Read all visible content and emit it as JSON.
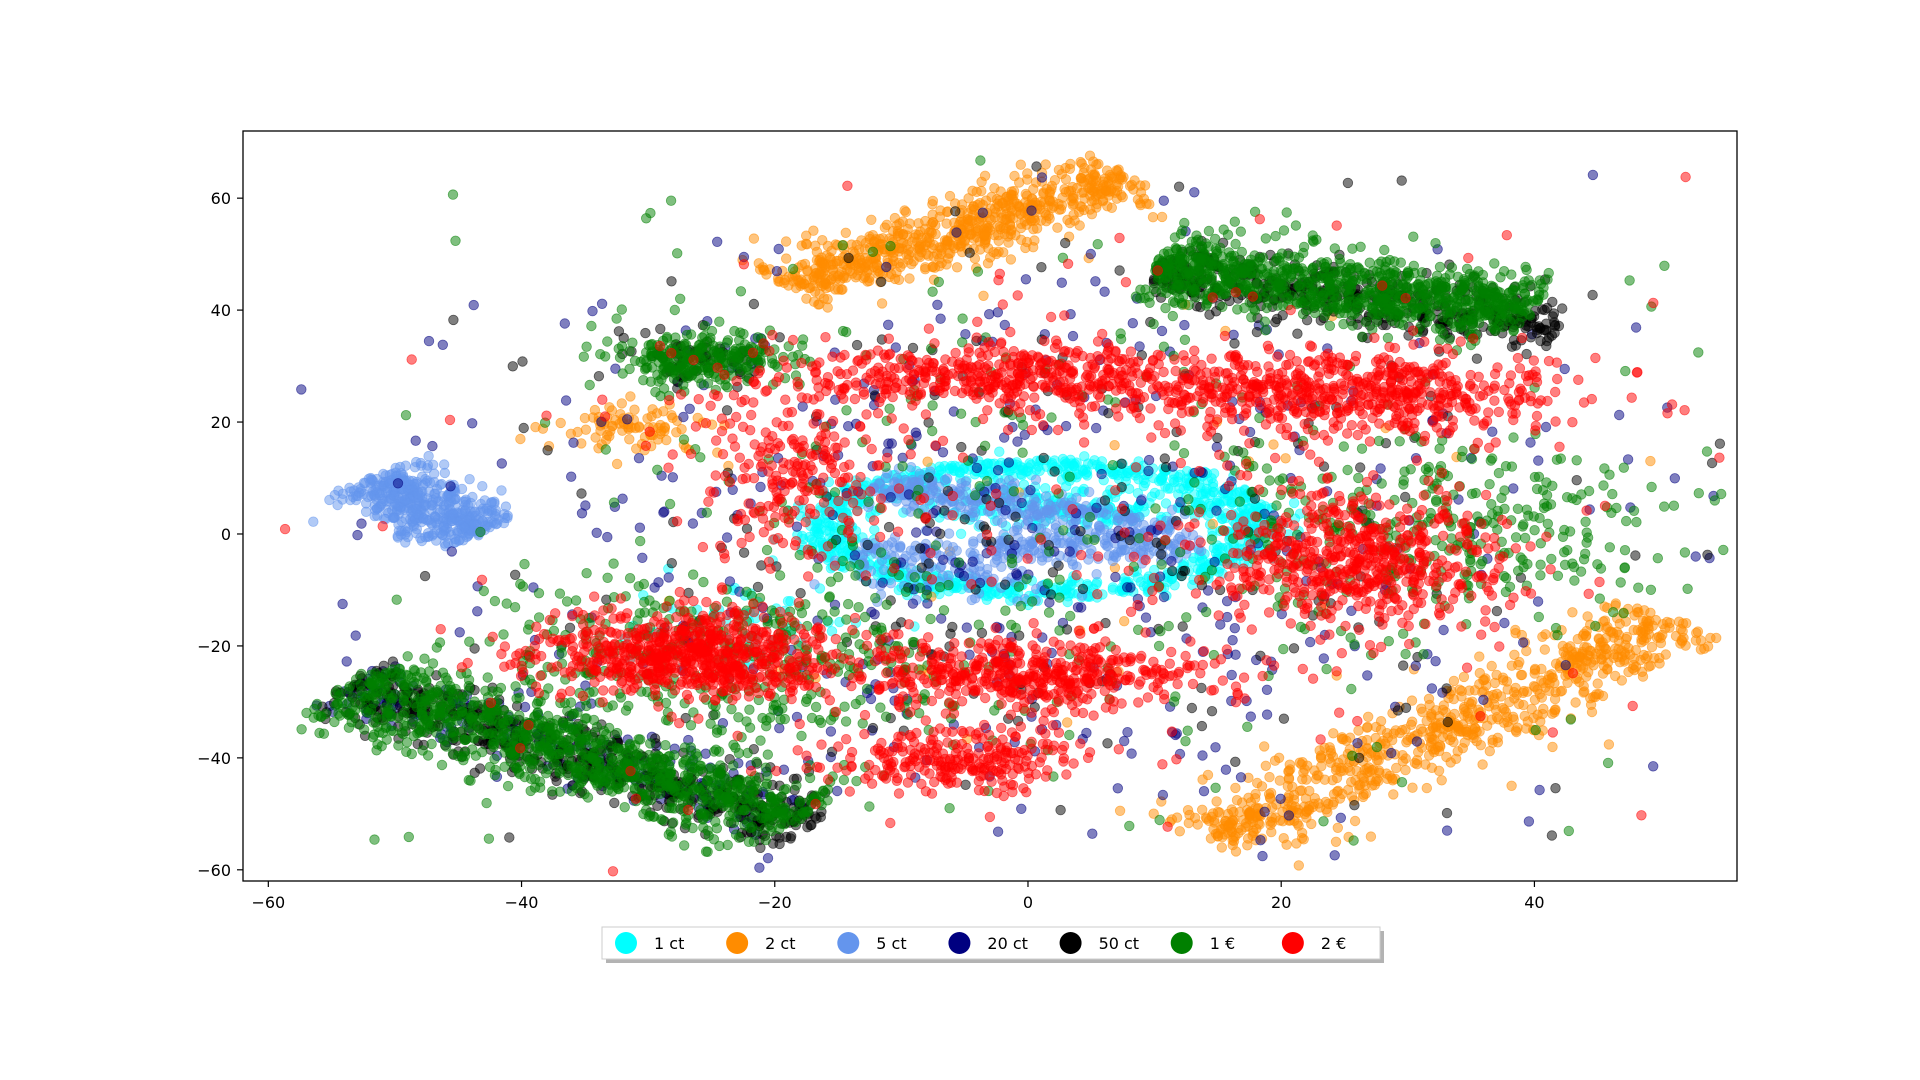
{
  "chart_data": {
    "type": "scatter",
    "title": "",
    "xlabel": "",
    "ylabel": "",
    "xlim": [
      -62,
      56
    ],
    "ylim": [
      -62,
      72
    ],
    "xticks": [
      -60,
      -40,
      -20,
      0,
      20,
      40
    ],
    "yticks": [
      -60,
      -40,
      -20,
      0,
      20,
      40,
      60
    ],
    "grid": false,
    "legend_placement": "bottom-center",
    "series": [
      {
        "name": "1 ct",
        "color": "#00ffff",
        "clusters": [
          {
            "shape": "ring",
            "cx": 1,
            "cy": 1,
            "rx": 17,
            "ry": 18,
            "n": 900
          },
          {
            "shape": "blob",
            "cx": 4,
            "cy": 5,
            "sx": 6,
            "sy": 2,
            "n": 200
          },
          {
            "shape": "blob",
            "cx": -22,
            "cy": -16,
            "sx": 5,
            "sy": 4,
            "n": 60
          }
        ]
      },
      {
        "name": "2 ct",
        "color": "#ff8c00",
        "clusters": [
          {
            "shape": "band",
            "x0": -19,
            "y0": 44,
            "x1": 8,
            "y1": 64,
            "w": 2.6,
            "n": 700
          },
          {
            "shape": "band",
            "x0": 14,
            "y0": -55,
            "x1": 51,
            "y1": -15,
            "w": 2.8,
            "n": 800
          },
          {
            "shape": "blob",
            "cx": -31,
            "cy": 19,
            "sx": 3,
            "sy": 2,
            "n": 90
          },
          {
            "shape": "blob",
            "cx": 0,
            "cy": 0,
            "sx": 22,
            "sy": 30,
            "n": 40
          }
        ]
      },
      {
        "name": "5 ct",
        "color": "#6495ed",
        "clusters": [
          {
            "shape": "band",
            "x0": -52,
            "y0": 10,
            "x1": -43,
            "y1": 0,
            "w": 2.2,
            "n": 450
          },
          {
            "shape": "band",
            "x0": -12,
            "y0": 9,
            "x1": 11,
            "y1": 0,
            "w": 2,
            "n": 320
          },
          {
            "shape": "band",
            "x0": -14,
            "y0": -3,
            "x1": 14,
            "y1": -2,
            "w": 1.5,
            "n": 220
          },
          {
            "shape": "blob",
            "cx": -6,
            "cy": -8,
            "sx": 5,
            "sy": 2,
            "n": 80
          }
        ]
      },
      {
        "name": "20 ct",
        "color": "#000080",
        "clusters": [
          {
            "shape": "blob",
            "cx": 0,
            "cy": 0,
            "sx": 22,
            "sy": 27,
            "n": 500
          },
          {
            "shape": "band",
            "x0": -54,
            "y0": -26,
            "x1": -18,
            "y1": -51,
            "w": 2.6,
            "n": 200
          }
        ]
      },
      {
        "name": "50 ct",
        "color": "#000000",
        "clusters": [
          {
            "shape": "band",
            "x0": -54,
            "y0": -27,
            "x1": -17,
            "y1": -52,
            "w": 2.6,
            "n": 550
          },
          {
            "shape": "band",
            "x0": 10,
            "y0": 47,
            "x1": 42,
            "y1": 37,
            "w": 2.6,
            "n": 450
          },
          {
            "shape": "blob",
            "cx": 0,
            "cy": 0,
            "sx": 22,
            "sy": 27,
            "n": 250
          },
          {
            "shape": "blob",
            "cx": -26,
            "cy": 31,
            "sx": 3,
            "sy": 2,
            "n": 60
          }
        ]
      },
      {
        "name": "1 €",
        "color": "#008000",
        "clusters": [
          {
            "shape": "band",
            "x0": -54,
            "y0": -27,
            "x1": -18,
            "y1": -51,
            "w": 3.4,
            "n": 1000
          },
          {
            "shape": "band",
            "x0": 10,
            "y0": 48,
            "x1": 40,
            "y1": 40,
            "w": 3.2,
            "n": 900
          },
          {
            "shape": "blob",
            "cx": -26,
            "cy": 31,
            "sx": 3.5,
            "sy": 2.5,
            "n": 250
          },
          {
            "shape": "blob",
            "cx": 33,
            "cy": 1,
            "sx": 9,
            "sy": 8,
            "n": 300
          },
          {
            "shape": "blob",
            "cx": -23,
            "cy": -23,
            "sx": 9,
            "sy": 8,
            "n": 350
          },
          {
            "shape": "blob",
            "cx": 0,
            "cy": 0,
            "sx": 22,
            "sy": 27,
            "n": 350
          }
        ]
      },
      {
        "name": "2 €",
        "color": "#ff0000",
        "clusters": [
          {
            "shape": "blob",
            "cx": -27,
            "cy": -22,
            "sx": 6,
            "sy": 4,
            "n": 700
          },
          {
            "shape": "blob",
            "cx": 25,
            "cy": 25,
            "sx": 9,
            "sy": 4,
            "n": 600
          },
          {
            "shape": "blob",
            "cx": 26,
            "cy": -5,
            "sx": 6,
            "sy": 6,
            "n": 550
          },
          {
            "shape": "blob",
            "cx": -2,
            "cy": 28,
            "sx": 9,
            "sy": 3,
            "n": 450
          },
          {
            "shape": "blob",
            "cx": 0,
            "cy": -25,
            "sx": 7,
            "sy": 3,
            "n": 450
          },
          {
            "shape": "blob",
            "cx": -6,
            "cy": -40,
            "sx": 5,
            "sy": 3,
            "n": 250
          },
          {
            "shape": "blob",
            "cx": -19,
            "cy": 10,
            "sx": 4,
            "sy": 8,
            "n": 200
          },
          {
            "shape": "blob",
            "cx": 0,
            "cy": 0,
            "sx": 22,
            "sy": 27,
            "n": 250
          }
        ]
      }
    ]
  }
}
